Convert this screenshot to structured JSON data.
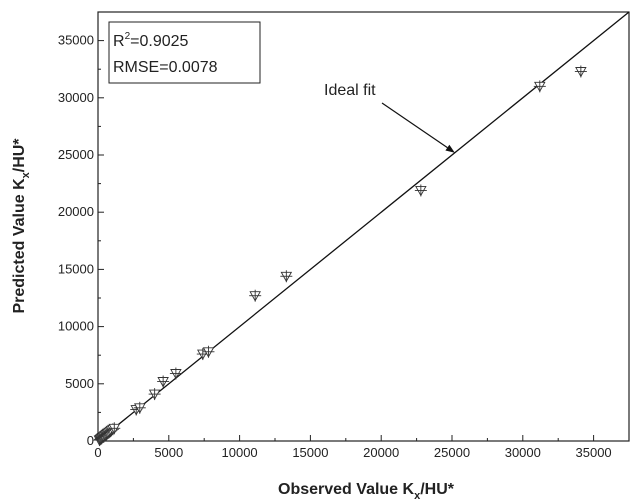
{
  "chart_data": {
    "type": "scatter",
    "xlabel": {
      "main": "Observed Value K",
      "sub": "x",
      "suffix": "/HU*"
    },
    "ylabel": {
      "main": "Predicted Value K",
      "sub": "x",
      "suffix": "/HU*"
    },
    "xlim": [
      0,
      37500
    ],
    "ylim": [
      0,
      37500
    ],
    "xticks": [
      0,
      5000,
      10000,
      15000,
      20000,
      25000,
      30000,
      35000
    ],
    "yticks": [
      0,
      5000,
      10000,
      15000,
      20000,
      25000,
      30000,
      35000
    ],
    "stats": {
      "r2_label": "R",
      "r2_sup": "2",
      "r2_value": "=0.9025",
      "rmse": "RMSE=0.0078"
    },
    "annotation": {
      "text": "Ideal fit",
      "arrow_target": [
        25200,
        25200
      ]
    },
    "ideal_fit": {
      "x": [
        0,
        37500
      ],
      "y": [
        0,
        37500
      ]
    },
    "marker": "triangle-down-cross",
    "points": [
      [
        100,
        80
      ],
      [
        150,
        140
      ],
      [
        200,
        190
      ],
      [
        260,
        230
      ],
      [
        300,
        310
      ],
      [
        360,
        350
      ],
      [
        420,
        390
      ],
      [
        480,
        470
      ],
      [
        540,
        520
      ],
      [
        600,
        580
      ],
      [
        660,
        650
      ],
      [
        720,
        700
      ],
      [
        800,
        770
      ],
      [
        880,
        850
      ],
      [
        950,
        930
      ],
      [
        1050,
        1020
      ],
      [
        1150,
        1110
      ],
      [
        2700,
        2750
      ],
      [
        2950,
        2900
      ],
      [
        4000,
        4100
      ],
      [
        4600,
        5200
      ],
      [
        5500,
        5900
      ],
      [
        7400,
        7600
      ],
      [
        7800,
        7800
      ],
      [
        11100,
        12700
      ],
      [
        13300,
        14400
      ],
      [
        22800,
        21900
      ],
      [
        31200,
        31000
      ],
      [
        34100,
        32300
      ]
    ]
  }
}
